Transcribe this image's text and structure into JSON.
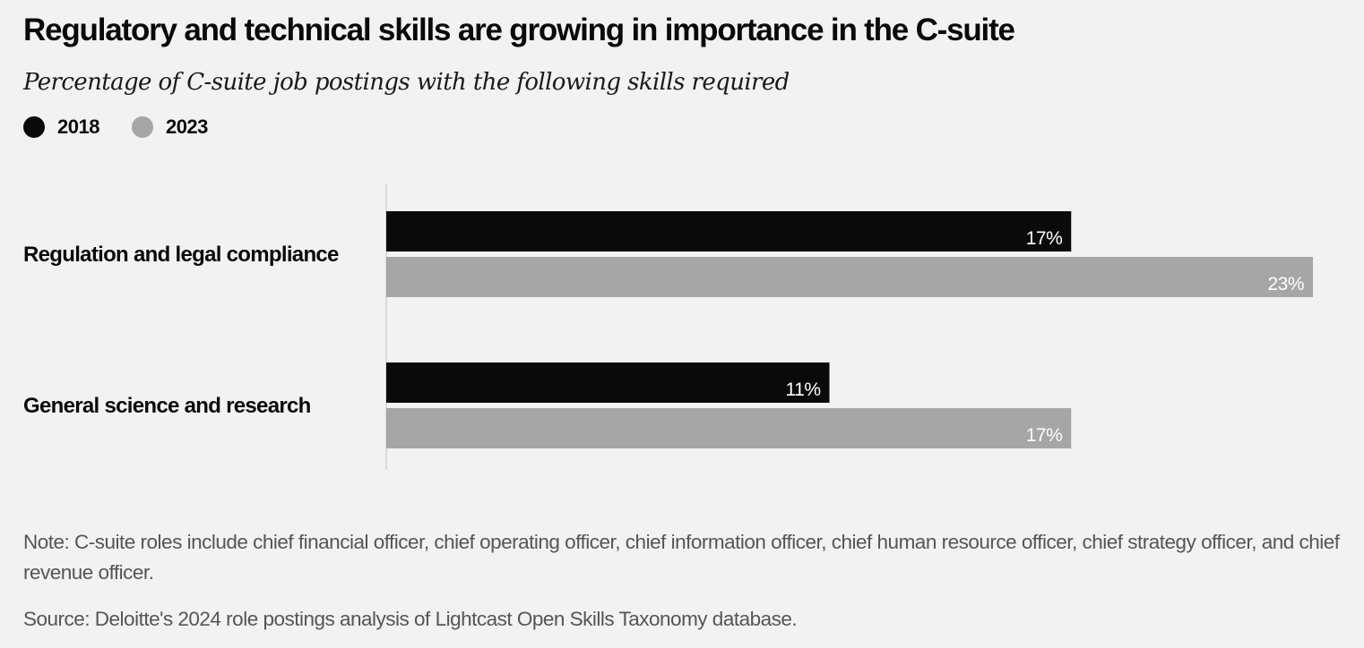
{
  "title": "Regulatory and technical skills are growing in importance in the C-suite",
  "subtitle": "Percentage of C-suite job postings with the following skills required",
  "legend": [
    {
      "label": "2018",
      "color": "#0a0a0a"
    },
    {
      "label": "2023",
      "color": "#a6a6a6"
    }
  ],
  "chart_data": {
    "type": "bar",
    "orientation": "horizontal",
    "title": "Regulatory and technical skills are growing in importance in the C-suite",
    "subtitle": "Percentage of C-suite job postings with the following skills required",
    "categories": [
      "Regulation and legal compliance",
      "General science and research"
    ],
    "series": [
      {
        "name": "2018",
        "values": [
          17,
          11
        ],
        "labels": [
          "17%",
          "11%"
        ],
        "color": "#0a0a0a"
      },
      {
        "name": "2023",
        "values": [
          23,
          17
        ],
        "labels": [
          "23%",
          "17%"
        ],
        "color": "#a6a6a6"
      }
    ],
    "xlim": [
      0,
      23
    ],
    "unit": "%",
    "grid": false,
    "legend_position": "top-left"
  },
  "note": "Note: C-suite roles include chief financial officer, chief operating officer, chief information officer, chief human resource officer, chief strategy officer, and chief revenue officer.",
  "source": "Source: Deloitte's 2024 role postings analysis of Lightcast Open Skills Taxonomy database."
}
